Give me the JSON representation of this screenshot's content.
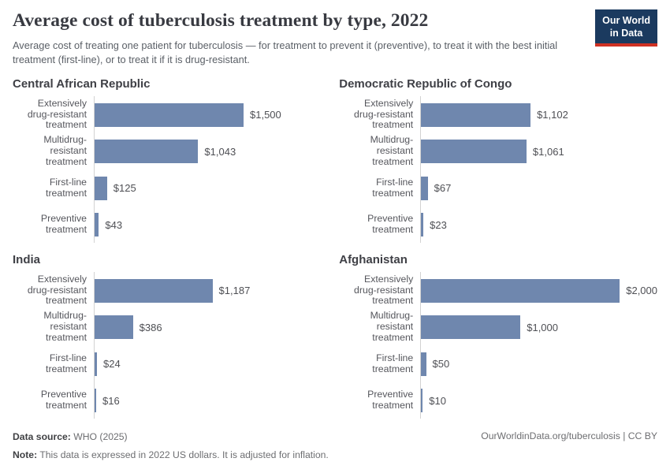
{
  "header": {
    "title": "Average cost of tuberculosis treatment by type, 2022",
    "subtitle": "Average cost of treating one patient for tuberculosis — for treatment to prevent it (preventive), to treat it with the best initial treatment (first-line), or to treat it if it is drug-resistant.",
    "logo": {
      "line1": "Our World",
      "line2": "in Data"
    }
  },
  "chart_data": {
    "type": "bar",
    "orientation": "horizontal",
    "unit": "US$ (2022, inflation-adjusted)",
    "categories": [
      "Extensively drug-resistant treatment",
      "Multidrug-resistant treatment",
      "First-line treatment",
      "Preventive treatment"
    ],
    "category_display_lines": [
      [
        "Extensively",
        "drug-resistant",
        "treatment"
      ],
      [
        "Multidrug-resistant",
        "treatment"
      ],
      [
        "First-line treatment"
      ],
      [
        "Preventive",
        "treatment"
      ]
    ],
    "panels": [
      {
        "title": "Central African Republic",
        "values": [
          1500,
          1043,
          125,
          43
        ],
        "value_labels": [
          "$1,500",
          "$1,043",
          "$125",
          "$43"
        ]
      },
      {
        "title": "Democratic Republic of Congo",
        "values": [
          1102,
          1061,
          67,
          23
        ],
        "value_labels": [
          "$1,102",
          "$1,061",
          "$67",
          "$23"
        ]
      },
      {
        "title": "India",
        "values": [
          1187,
          386,
          24,
          16
        ],
        "value_labels": [
          "$1,187",
          "$386",
          "$24",
          "$16"
        ]
      },
      {
        "title": "Afghanistan",
        "values": [
          2000,
          1000,
          50,
          10
        ],
        "value_labels": [
          "$2,000",
          "$1,000",
          "$50",
          "$10"
        ]
      }
    ],
    "xlim": [
      0,
      2000
    ],
    "grid": false,
    "legend": "none",
    "value_labels_shown": true,
    "bar_color": "#6f87ae",
    "axis_line_color": "#d2d2d2"
  },
  "footer": {
    "source_label": "Data source:",
    "source_value": " WHO (2025)",
    "note_label": "Note:",
    "note_value": " This data is expressed in 2022 US dollars. It is adjusted for inflation.",
    "right_text": "OurWorldinData.org/tuberculosis | CC BY"
  }
}
